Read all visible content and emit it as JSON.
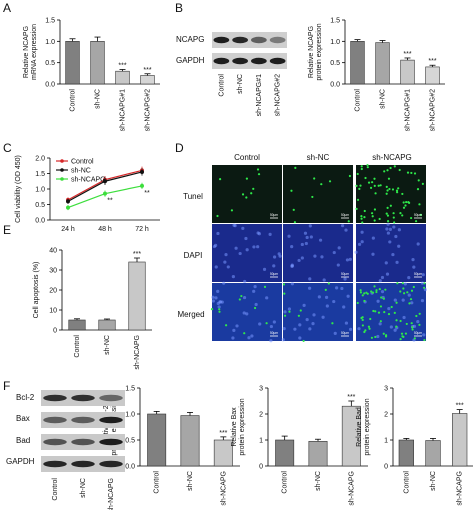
{
  "panels": {
    "A": "A",
    "B": "B",
    "C": "C",
    "D": "D",
    "E": "E",
    "F": "F"
  },
  "blot_labels": {
    "ncapg": "NCAPG",
    "gapdh": "GAPDH",
    "bcl2": "Bcl-2",
    "bax": "Bax",
    "bad": "Bad",
    "gapdh_f": "GAPDH"
  },
  "micro": {
    "columns": [
      "Control",
      "sh-NC",
      "sh-NCAPG"
    ],
    "rows": [
      "Tunel",
      "DAPI",
      "Merged"
    ],
    "scale": "50μm"
  },
  "colors": {
    "control_bar": "#808080",
    "shnc_bar": "#a6a6a6",
    "sh1_bar": "#c8c8c8",
    "sh2_bar": "#d6d6d6",
    "line_control": "#d62728",
    "line_shnc": "#111111",
    "line_shncapg": "#3dde3d",
    "micro_bg": "#0b1a12",
    "micro_dapi": "#1a2a8c",
    "micro_merged": "#1a3aa0",
    "tunel_dot": "#2ee84a"
  },
  "chart_data": [
    {
      "id": "A",
      "type": "bar",
      "categories": [
        "Control",
        "sh-NC",
        "sh-NCAPG#1",
        "sh-NCAPG#2"
      ],
      "values": [
        1.0,
        1.0,
        0.3,
        0.2
      ],
      "errors": [
        0.06,
        0.1,
        0.04,
        0.04
      ],
      "significance": [
        "",
        "",
        "***",
        "***"
      ],
      "ylabel": "Relative NCAPG\nmRNA expression",
      "ylim": [
        0,
        1.5
      ],
      "yticks": [
        "0.0",
        "0.5",
        "1.0",
        "1.5"
      ]
    },
    {
      "id": "B",
      "type": "bar",
      "categories": [
        "Control",
        "sh-NC",
        "sh-NCAPG#1",
        "sh-NCAPG#2"
      ],
      "values": [
        1.0,
        0.97,
        0.56,
        0.4
      ],
      "errors": [
        0.04,
        0.05,
        0.05,
        0.04
      ],
      "significance": [
        "",
        "",
        "***",
        "***"
      ],
      "ylabel": "Relative NCAPG\nprotein expression",
      "ylim": [
        0,
        1.5
      ],
      "yticks": [
        "0.0",
        "0.5",
        "1.0",
        "1.5"
      ]
    },
    {
      "id": "C",
      "type": "line",
      "x": [
        "24 h",
        "48 h",
        "72 h"
      ],
      "series": [
        {
          "name": "Control",
          "values": [
            0.65,
            1.3,
            1.6
          ],
          "errors": [
            0.08,
            0.12,
            0.12
          ]
        },
        {
          "name": "sh-NC",
          "values": [
            0.6,
            1.25,
            1.55
          ],
          "errors": [
            0.08,
            0.12,
            0.12
          ]
        },
        {
          "name": "sh-NCAPG",
          "values": [
            0.4,
            0.85,
            1.1
          ],
          "errors": [
            0.08,
            0.1,
            0.1
          ]
        }
      ],
      "annotations": [
        "**",
        "**"
      ],
      "ylabel": "Cell viability (OD 450)",
      "ylim": [
        0,
        2.0
      ],
      "yticks": [
        "0.0",
        "0.5",
        "1.0",
        "1.5",
        "2.0"
      ],
      "legend": "top-left"
    },
    {
      "id": "E",
      "type": "bar",
      "categories": [
        "Control",
        "sh-NC",
        "sh-NCAPG"
      ],
      "values": [
        5,
        5,
        34
      ],
      "errors": [
        0.6,
        0.5,
        2.0
      ],
      "significance": [
        "",
        "",
        "***"
      ],
      "ylabel": "Cell apoptosis (%)",
      "ylim": [
        0,
        40
      ],
      "yticks": [
        "0",
        "10",
        "20",
        "30",
        "40"
      ]
    },
    {
      "id": "F1",
      "type": "bar",
      "categories": [
        "Control",
        "sh-NC",
        "sh-NCAPG"
      ],
      "values": [
        1.0,
        0.97,
        0.5
      ],
      "errors": [
        0.05,
        0.06,
        0.06
      ],
      "significance": [
        "",
        "",
        "***"
      ],
      "ylabel": "Relative Bcl-2\nprotein expression",
      "ylim": [
        0,
        1.5
      ],
      "yticks": [
        "0.0",
        "0.5",
        "1.0",
        "1.5"
      ]
    },
    {
      "id": "F2",
      "type": "bar",
      "categories": [
        "Control",
        "sh-NC",
        "sh-NCAPG"
      ],
      "values": [
        1.0,
        0.95,
        2.3
      ],
      "errors": [
        0.15,
        0.08,
        0.2
      ],
      "significance": [
        "",
        "",
        "***"
      ],
      "ylabel": "Relative Bax\nprotein expression",
      "ylim": [
        0,
        3
      ],
      "yticks": [
        "0",
        "1",
        "2",
        "3"
      ]
    },
    {
      "id": "F3",
      "type": "bar",
      "categories": [
        "Control",
        "sh-NC",
        "sh-NCAPG"
      ],
      "values": [
        1.0,
        0.98,
        2.02
      ],
      "errors": [
        0.06,
        0.08,
        0.15
      ],
      "significance": [
        "",
        "",
        "***"
      ],
      "ylabel": "Relative Bad\nprotein expression",
      "ylim": [
        0,
        3
      ],
      "yticks": [
        "0",
        "1",
        "2",
        "3"
      ]
    }
  ]
}
